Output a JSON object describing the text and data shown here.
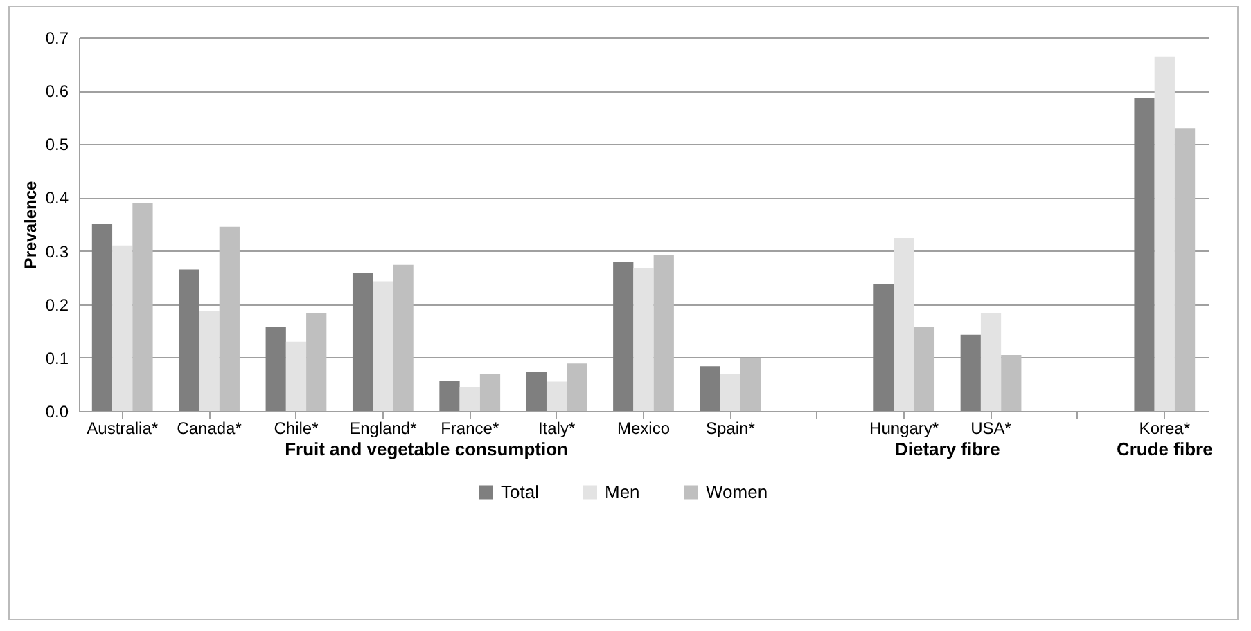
{
  "chart_data": {
    "type": "bar",
    "ylabel": "Prevalence",
    "categories": [
      "Australia*",
      "Canada*",
      "Chile*",
      "England*",
      "France*",
      "Italy*",
      "Mexico",
      "Spain*",
      null,
      "Hungary*",
      "USA*",
      null,
      "Korea*"
    ],
    "series": [
      {
        "name": "Total",
        "color": "#7f7f7f",
        "values": [
          0.35,
          0.265,
          0.158,
          0.259,
          0.057,
          0.073,
          0.28,
          0.084,
          null,
          0.238,
          0.143,
          null,
          0.587
        ]
      },
      {
        "name": "Men",
        "color": "#e3e3e3",
        "values": [
          0.31,
          0.188,
          0.13,
          0.243,
          0.044,
          0.055,
          0.267,
          0.07,
          null,
          0.324,
          0.184,
          null,
          0.664
        ]
      },
      {
        "name": "Women",
        "color": "#bfbfbf",
        "values": [
          0.39,
          0.345,
          0.184,
          0.274,
          0.07,
          0.089,
          0.293,
          0.099,
          null,
          0.158,
          0.105,
          null,
          0.53
        ]
      }
    ],
    "ylim": [
      0,
      0.7
    ],
    "yticks": [
      {
        "value": 0,
        "label": "0.0"
      },
      {
        "value": 0.1,
        "label": "0.1"
      },
      {
        "value": 0.2,
        "label": "0.2"
      },
      {
        "value": 0.3,
        "label": "0.3"
      },
      {
        "value": 0.4,
        "label": "0.4"
      },
      {
        "value": 0.5,
        "label": "0.5"
      },
      {
        "value": 0.6,
        "label": "0.6"
      },
      {
        "value": 0.7,
        "label": "0.7"
      }
    ],
    "annotations": [
      "Fruit and vegetable consumption",
      "Dietary fibre",
      "Crude fibre"
    ],
    "grid": "y",
    "legend": "bottom"
  }
}
